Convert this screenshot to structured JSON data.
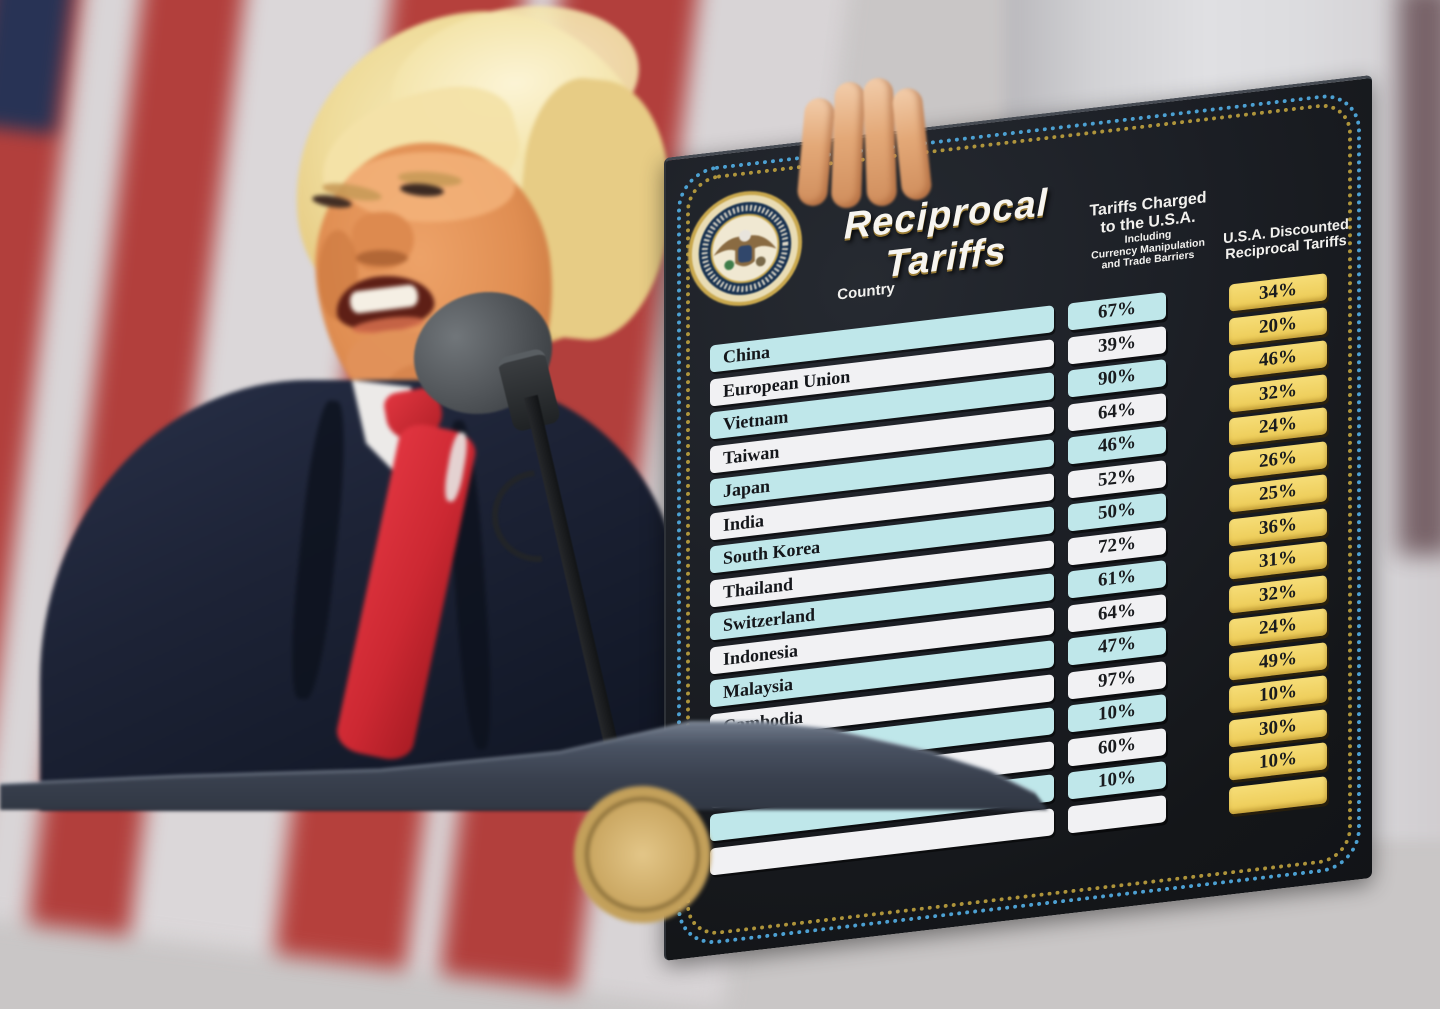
{
  "board": {
    "title": "Reciprocal Tariffs",
    "seal_text": "SEAL OF THE PRESIDENT OF THE UNITED STATES",
    "country_header": "Country",
    "charged_header": {
      "line1": "Tariffs Charged",
      "line2": "to the U.S.A.",
      "sub1": "Including",
      "sub2": "Currency Manipulation",
      "sub3": "and Trade Barriers"
    },
    "discounted_header": {
      "line1": "U.S.A. Discounted",
      "line2": "Reciprocal Tariffs"
    },
    "rows": [
      {
        "country": "China",
        "charged": "67%",
        "discounted": "34%"
      },
      {
        "country": "European Union",
        "charged": "39%",
        "discounted": "20%"
      },
      {
        "country": "Vietnam",
        "charged": "90%",
        "discounted": "46%"
      },
      {
        "country": "Taiwan",
        "charged": "64%",
        "discounted": "32%"
      },
      {
        "country": "Japan",
        "charged": "46%",
        "discounted": "24%"
      },
      {
        "country": "India",
        "charged": "52%",
        "discounted": "26%"
      },
      {
        "country": "South Korea",
        "charged": "50%",
        "discounted": "25%"
      },
      {
        "country": "Thailand",
        "charged": "72%",
        "discounted": "36%"
      },
      {
        "country": "Switzerland",
        "charged": "61%",
        "discounted": "31%"
      },
      {
        "country": "Indonesia",
        "charged": "64%",
        "discounted": "32%"
      },
      {
        "country": "Malaysia",
        "charged": "47%",
        "discounted": "24%"
      },
      {
        "country": "Cambodia",
        "charged": "97%",
        "discounted": "49%"
      },
      {
        "country": "",
        "charged": "10%",
        "discounted": "10%"
      },
      {
        "country": "",
        "charged": "60%",
        "discounted": "30%"
      },
      {
        "country": "",
        "charged": "10%",
        "discounted": "10%"
      },
      {
        "country": "",
        "charged": "",
        "discounted": ""
      }
    ],
    "colors": {
      "bar_cyan": "#bfe7ea",
      "bar_white": "#f1f1f3",
      "box_gold": "#f2d564",
      "board_bg": "#17191e",
      "dot_blue": "#4fa8dc",
      "dot_gold": "#bfa23e"
    }
  },
  "chart_data": {
    "type": "table",
    "title": "Reciprocal Tariffs",
    "columns": [
      "Country",
      "Tariffs Charged to the U.S.A. Including Currency Manipulation and Trade Barriers",
      "U.S.A. Discounted Reciprocal Tariffs"
    ],
    "rows": [
      [
        "China",
        "67%",
        "34%"
      ],
      [
        "European Union",
        "39%",
        "20%"
      ],
      [
        "Vietnam",
        "90%",
        "46%"
      ],
      [
        "Taiwan",
        "64%",
        "32%"
      ],
      [
        "Japan",
        "46%",
        "24%"
      ],
      [
        "India",
        "52%",
        "26%"
      ],
      [
        "South Korea",
        "50%",
        "25%"
      ],
      [
        "Thailand",
        "72%",
        "36%"
      ],
      [
        "Switzerland",
        "61%",
        "31%"
      ],
      [
        "Indonesia",
        "64%",
        "32%"
      ],
      [
        "Malaysia",
        "47%",
        "24%"
      ],
      [
        "Cambodia",
        "97%",
        "49%"
      ],
      [
        "",
        "10%",
        "10%"
      ],
      [
        "",
        "60%",
        "30%"
      ],
      [
        "",
        "10%",
        "10%"
      ]
    ]
  }
}
